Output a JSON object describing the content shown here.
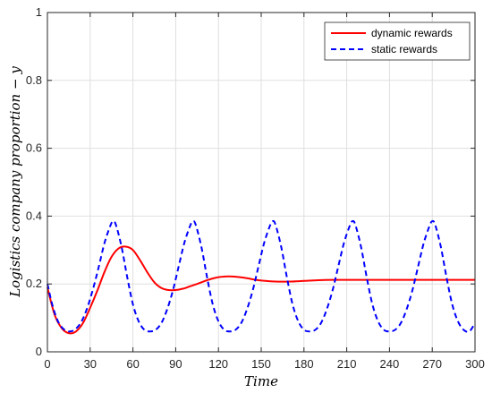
{
  "chart_data": {
    "type": "line",
    "title": "",
    "xlabel": "Time",
    "ylabel": "Logistics company proportion − y",
    "xlim": [
      0,
      300
    ],
    "ylim": [
      0,
      1
    ],
    "xticks": [
      0,
      30,
      60,
      90,
      120,
      150,
      180,
      210,
      240,
      270,
      300
    ],
    "yticks": [
      0,
      0.2,
      0.4,
      0.6,
      0.8,
      1
    ],
    "ytick_labels": [
      "0",
      "0.2",
      "0.4",
      "0.6",
      "0.8",
      "1"
    ],
    "grid": true,
    "legend_position": "top-right",
    "series": [
      {
        "name": "dynamic rewards",
        "color": "#ff0000",
        "style": "solid",
        "x": [
          0,
          5,
          10,
          15,
          20,
          25,
          30,
          35,
          40,
          45,
          50,
          55,
          60,
          65,
          70,
          75,
          80,
          85,
          90,
          95,
          100,
          105,
          110,
          115,
          120,
          125,
          130,
          135,
          140,
          145,
          150,
          160,
          170,
          180,
          190,
          200,
          210,
          220,
          240,
          260,
          280,
          300
        ],
        "y": [
          0.19,
          0.11,
          0.07,
          0.055,
          0.06,
          0.085,
          0.13,
          0.18,
          0.235,
          0.28,
          0.305,
          0.31,
          0.3,
          0.27,
          0.235,
          0.205,
          0.188,
          0.182,
          0.182,
          0.186,
          0.193,
          0.2,
          0.208,
          0.215,
          0.22,
          0.222,
          0.222,
          0.22,
          0.217,
          0.213,
          0.21,
          0.207,
          0.207,
          0.209,
          0.211,
          0.212,
          0.212,
          0.212,
          0.212,
          0.212,
          0.212,
          0.212
        ]
      },
      {
        "name": "static rewards",
        "color": "#0000ff",
        "style": "dashed",
        "x": [
          0,
          4,
          8,
          12,
          16,
          20,
          24,
          28,
          32,
          36,
          40,
          44,
          46,
          48,
          52,
          56,
          60,
          64,
          68,
          72,
          76,
          80,
          84,
          88,
          92,
          96,
          100,
          102,
          104,
          108,
          112,
          116,
          120,
          124,
          128,
          132,
          136,
          140,
          144,
          148,
          152,
          156,
          158,
          160,
          164,
          168,
          172,
          176,
          180,
          184,
          188,
          192,
          196,
          200,
          204,
          208,
          212,
          214,
          216,
          220,
          224,
          228,
          232,
          236,
          240,
          244,
          248,
          252,
          256,
          260,
          264,
          268,
          270,
          272,
          276,
          280,
          284,
          288,
          292,
          296,
          300
        ],
        "y": [
          0.2,
          0.13,
          0.085,
          0.065,
          0.06,
          0.068,
          0.09,
          0.13,
          0.185,
          0.25,
          0.32,
          0.37,
          0.385,
          0.375,
          0.31,
          0.22,
          0.14,
          0.09,
          0.065,
          0.06,
          0.065,
          0.085,
          0.125,
          0.18,
          0.25,
          0.32,
          0.37,
          0.385,
          0.375,
          0.31,
          0.22,
          0.14,
          0.09,
          0.065,
          0.06,
          0.065,
          0.085,
          0.125,
          0.18,
          0.25,
          0.32,
          0.37,
          0.385,
          0.375,
          0.31,
          0.22,
          0.14,
          0.09,
          0.065,
          0.06,
          0.065,
          0.085,
          0.125,
          0.18,
          0.25,
          0.32,
          0.37,
          0.385,
          0.375,
          0.31,
          0.22,
          0.14,
          0.09,
          0.065,
          0.06,
          0.065,
          0.085,
          0.125,
          0.18,
          0.25,
          0.32,
          0.37,
          0.385,
          0.375,
          0.31,
          0.22,
          0.14,
          0.09,
          0.065,
          0.06,
          0.085
        ]
      }
    ]
  }
}
